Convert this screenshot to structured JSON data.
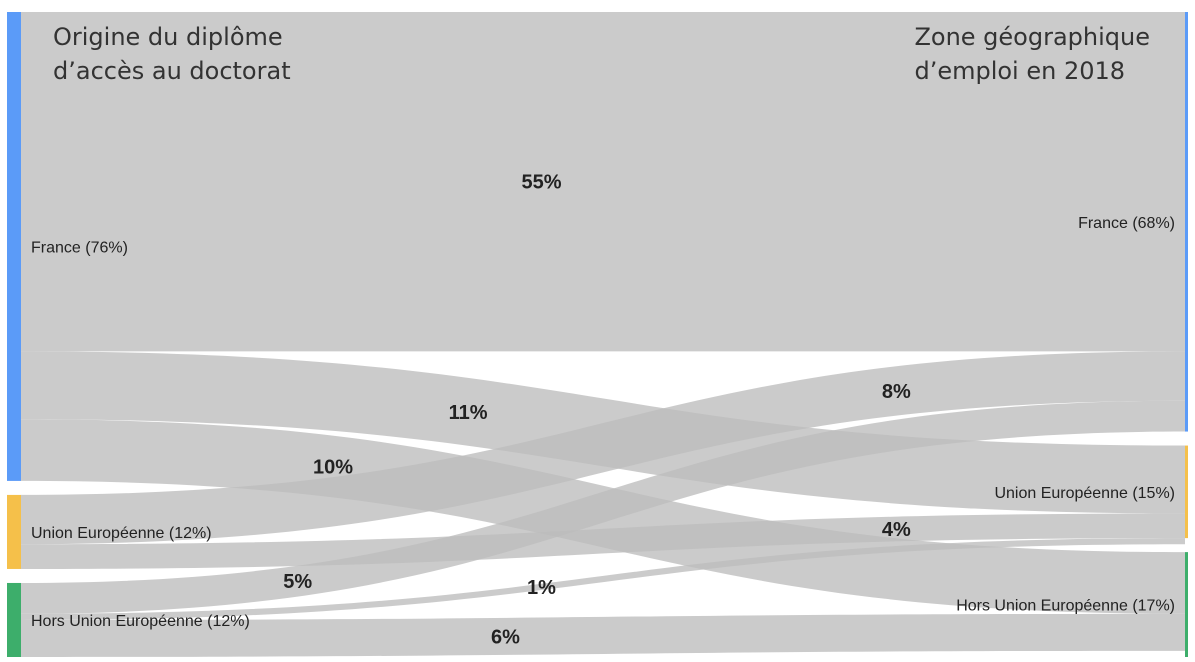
{
  "titles": {
    "left_line1": "Origine du diplôme",
    "left_line2": "d’accès au doctorat",
    "right_line1": "Zone géographique",
    "right_line2": "d’emploi en 2018"
  },
  "chart_data": {
    "type": "sankey",
    "sources": [
      {
        "id": "src-france",
        "label": "France (76%)",
        "value": 76,
        "color": "#5b9bf8"
      },
      {
        "id": "src-ue",
        "label": "Union Européenne (12%)",
        "value": 12,
        "color": "#f5c04a"
      },
      {
        "id": "src-hors",
        "label": "Hors Union Européenne (12%)",
        "value": 12,
        "color": "#3dae6b"
      }
    ],
    "targets": [
      {
        "id": "tgt-france",
        "label": "France (68%)",
        "value": 68,
        "color": "#5b9bf8"
      },
      {
        "id": "tgt-ue",
        "label": "Union Européenne (15%)",
        "value": 15,
        "color": "#f5c04a"
      },
      {
        "id": "tgt-hors",
        "label": "Hors Union Européenne (17%)",
        "value": 17,
        "color": "#3dae6b"
      }
    ],
    "flows": [
      {
        "source": "src-france",
        "target": "tgt-france",
        "value": 55,
        "label": "55%"
      },
      {
        "source": "src-france",
        "target": "tgt-ue",
        "value": 11,
        "label": "11%"
      },
      {
        "source": "src-france",
        "target": "tgt-hors",
        "value": 10,
        "label": "10%"
      },
      {
        "source": "src-ue",
        "target": "tgt-france",
        "value": 8,
        "label": "8%"
      },
      {
        "source": "src-ue",
        "target": "tgt-ue",
        "value": 4,
        "label": "4%"
      },
      {
        "source": "src-hors",
        "target": "tgt-france",
        "value": 5,
        "label": "5%"
      },
      {
        "source": "src-hors",
        "target": "tgt-ue",
        "value": 1,
        "label": "1%"
      },
      {
        "source": "src-hors",
        "target": "tgt-hors",
        "value": 6,
        "label": "6%"
      }
    ],
    "flow_color": "#bdbdbd"
  }
}
